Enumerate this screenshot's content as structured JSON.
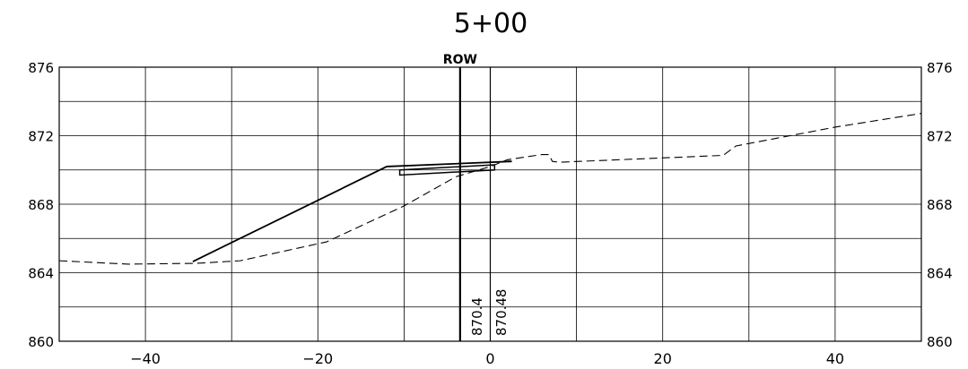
{
  "title": "5+00",
  "row_label": "ROW",
  "chart_data": {
    "type": "cross-section",
    "x_axis": {
      "min": -50,
      "max": 50,
      "grid_step": 10,
      "tick_labels": [
        "−40",
        "−20",
        "0",
        "20",
        "40"
      ],
      "tick_values": [
        -40,
        -20,
        0,
        20,
        40
      ]
    },
    "y_axis": {
      "min": 860,
      "max": 876,
      "grid_step": 2,
      "tick_labels": [
        "860",
        "864",
        "868",
        "872",
        "876"
      ],
      "tick_values": [
        860,
        864,
        868,
        872,
        876
      ],
      "both_sides": true
    },
    "grid": true,
    "row_x": -3.5,
    "existing_ground": {
      "style": "dashed",
      "points": [
        [
          -50,
          864.7
        ],
        [
          -42,
          864.5
        ],
        [
          -34,
          864.55
        ],
        [
          -29,
          864.7
        ],
        [
          -19,
          865.8
        ],
        [
          -10,
          867.9
        ],
        [
          -4,
          869.6
        ],
        [
          0,
          870.2
        ],
        [
          2,
          870.6
        ],
        [
          6,
          870.9
        ],
        [
          6.8,
          870.9
        ],
        [
          7.2,
          870.5
        ],
        [
          8,
          870.45
        ],
        [
          27,
          870.85
        ],
        [
          28.5,
          871.4
        ],
        [
          40,
          872.5
        ],
        [
          50,
          873.3
        ]
      ]
    },
    "proposed_grade": {
      "style": "solid",
      "points": [
        [
          -34.5,
          864.65
        ],
        [
          -12,
          870.2
        ],
        [
          2.5,
          870.5
        ],
        [
          2,
          870.5
        ]
      ]
    },
    "box": {
      "x1": -10.5,
      "x2": 0.5,
      "y_top_left": 870.0,
      "y_bot_left": 869.7,
      "y_top_right": 870.3,
      "y_bot_right": 870.0
    },
    "vertical_labels": [
      {
        "x": -1.5,
        "text": "870.4"
      },
      {
        "x": 1.3,
        "text": "870.48"
      }
    ],
    "offset_line_x": 0
  }
}
